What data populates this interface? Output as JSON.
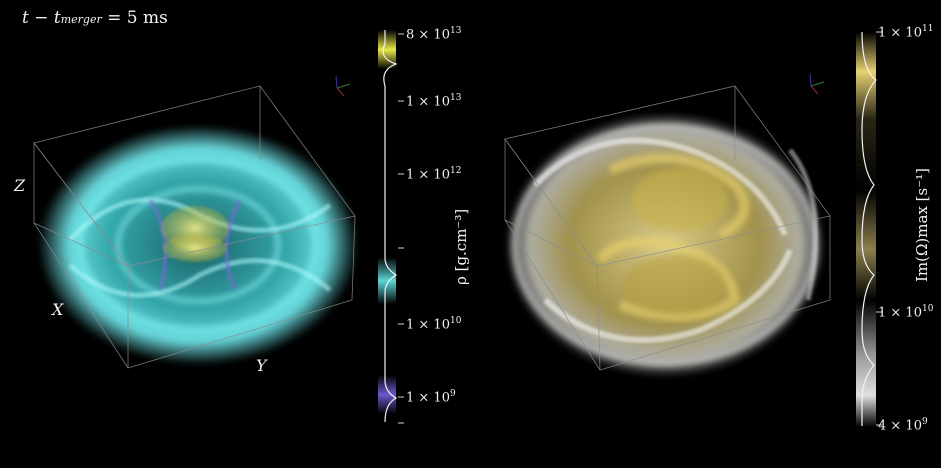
{
  "title": {
    "lhs": "t − t",
    "sub": "merger",
    "rhs": "= 5 ms"
  },
  "left_panel": {
    "axes": {
      "z": "Z",
      "x": "X",
      "y": "Y"
    },
    "colorbar": {
      "label": "ρ [g.cm⁻³]",
      "ticks": [
        {
          "mantissa": "8 × 10",
          "exp": "13"
        },
        {
          "mantissa": "1 × 10",
          "exp": "13"
        },
        {
          "mantissa": "1 × 10",
          "exp": "12"
        },
        {
          "mantissa": "1 × 10",
          "exp": "10"
        },
        {
          "mantissa": "1 × 10",
          "exp": "9"
        }
      ],
      "colors": {
        "high": "#e8e84a",
        "mid": "#5fd6d6",
        "low": "#6a5acd"
      }
    }
  },
  "right_panel": {
    "colorbar": {
      "label": "Im(Ω)max [s⁻¹]",
      "ticks": [
        {
          "mantissa": "1 × 10",
          "exp": "11"
        },
        {
          "mantissa": "1 × 10",
          "exp": "10"
        },
        {
          "mantissa": "4 × 10",
          "exp": "9"
        }
      ],
      "colors": {
        "high": "#e6d271",
        "mid": "#8c7f4d",
        "low": "#e0e0e0"
      }
    }
  }
}
